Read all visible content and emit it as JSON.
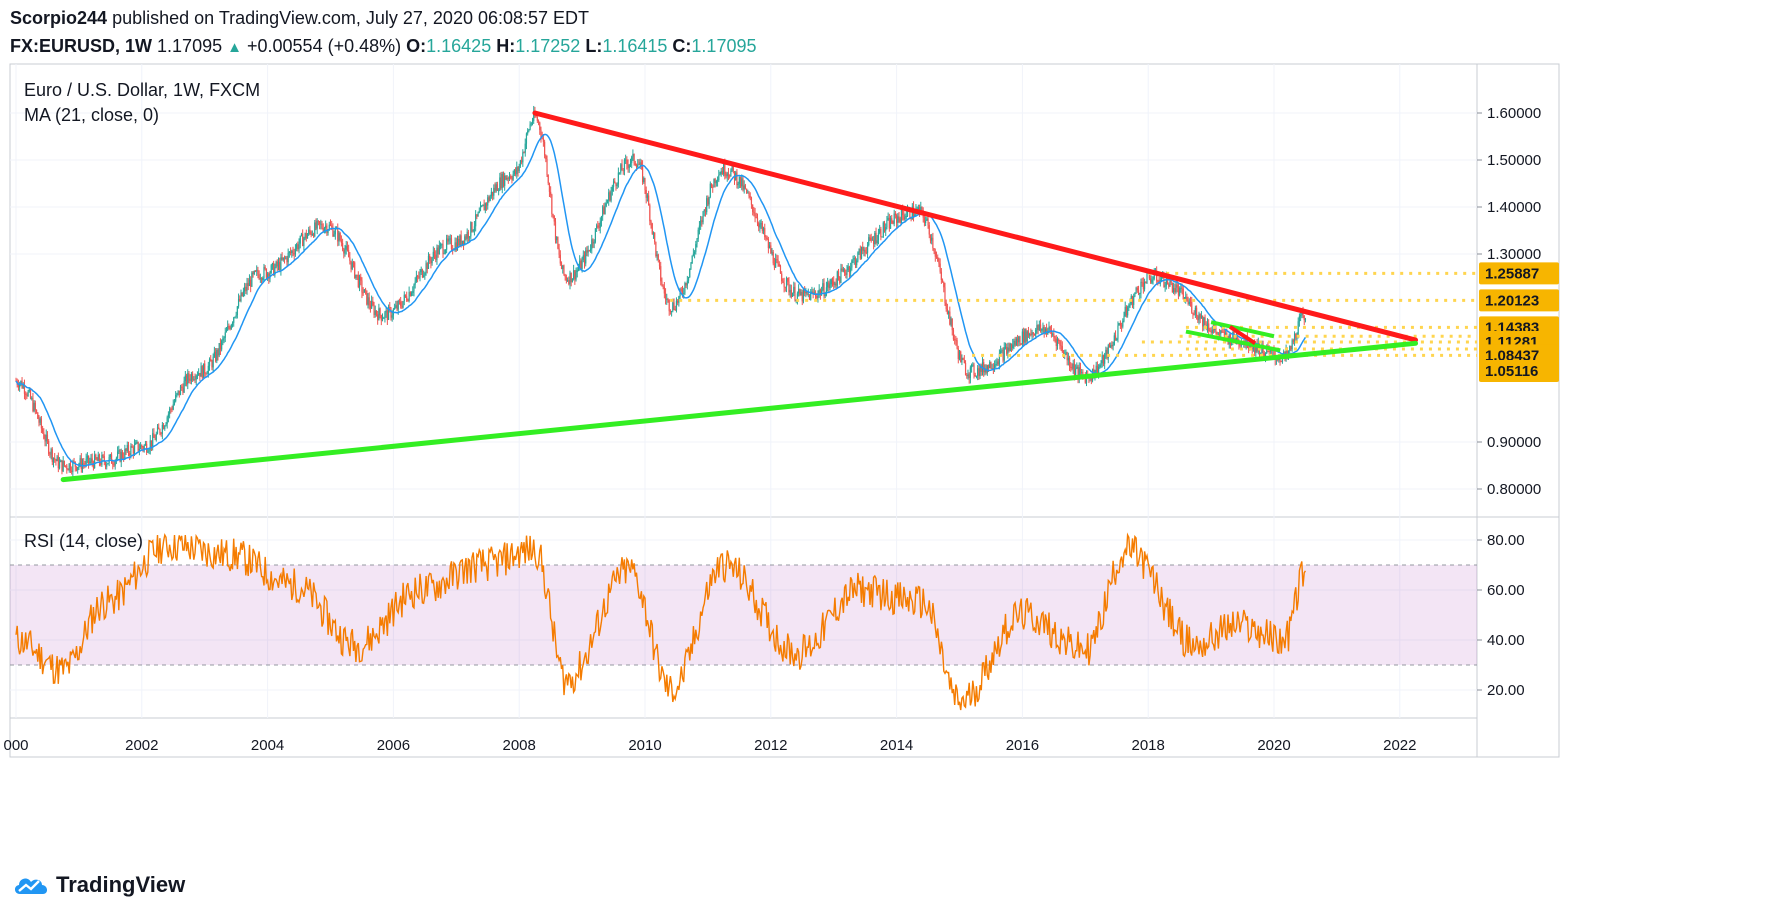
{
  "header": {
    "publisher": "Scorpio244",
    "published_text": "published on TradingView.com, July 27, 2020 06:08:57 EDT",
    "symbol": "FX:EURUSD, 1W",
    "last": "1.17095",
    "change": "+0.00554 (+0.48%)",
    "o_label": "O:",
    "o": "1.16425",
    "h_label": "H:",
    "h": "1.17252",
    "l_label": "L:",
    "l": "1.16415",
    "c_label": "C:",
    "c": "1.17095"
  },
  "brand": {
    "logo_text": "TradingView"
  },
  "colors": {
    "up": "#26a69a",
    "down": "#ef5350",
    "ma": "#2196f3",
    "rsi": "#f57c00",
    "resistance": "#ff1a1a",
    "support": "#33ee22",
    "levels": "#ffd54f",
    "highlight": "#f7b500"
  },
  "chart_data": [
    {
      "type": "candlestick",
      "title": "Euro / U.S. Dollar, 1W, FXCM",
      "indicator": "MA (21, close, 0)",
      "y_ticks": [
        "1.60000",
        "1.50000",
        "1.40000",
        "1.30000",
        "0.90000",
        "0.80000"
      ],
      "price_labels": [
        "1.25887",
        "1.20123",
        "1.14383",
        "1.11281",
        "1.08437",
        "1.05116"
      ],
      "x_ticks": [
        "000",
        "2002",
        "2004",
        "2006",
        "2008",
        "2010",
        "2012",
        "2014",
        "2016",
        "2018",
        "2020",
        "2022"
      ],
      "approx_close_path": [
        {
          "x": "2000-01",
          "y": 1.03
        },
        {
          "x": "2000-10",
          "y": 0.85
        },
        {
          "x": "2001-06",
          "y": 0.86
        },
        {
          "x": "2002-01",
          "y": 0.89
        },
        {
          "x": "2002-12",
          "y": 1.05
        },
        {
          "x": "2003-12",
          "y": 1.26
        },
        {
          "x": "2004-12",
          "y": 1.36
        },
        {
          "x": "2005-11",
          "y": 1.17
        },
        {
          "x": "2006-12",
          "y": 1.32
        },
        {
          "x": "2007-12",
          "y": 1.47
        },
        {
          "x": "2008-04",
          "y": 1.59
        },
        {
          "x": "2008-10",
          "y": 1.25
        },
        {
          "x": "2009-11",
          "y": 1.5
        },
        {
          "x": "2010-06",
          "y": 1.19
        },
        {
          "x": "2011-04",
          "y": 1.48
        },
        {
          "x": "2012-07",
          "y": 1.21
        },
        {
          "x": "2014-05",
          "y": 1.39
        },
        {
          "x": "2015-03",
          "y": 1.05
        },
        {
          "x": "2016-05",
          "y": 1.14
        },
        {
          "x": "2017-01",
          "y": 1.04
        },
        {
          "x": "2018-02",
          "y": 1.25
        },
        {
          "x": "2019-05",
          "y": 1.12
        },
        {
          "x": "2020-03",
          "y": 1.08
        },
        {
          "x": "2020-07",
          "y": 1.17
        }
      ],
      "trendlines": [
        {
          "name": "resistance",
          "from": {
            "x": "2008-04",
            "y": 1.6
          },
          "to": {
            "x": "2022-04",
            "y": 1.117
          }
        },
        {
          "name": "support",
          "from": {
            "x": "2000-10",
            "y": 0.82
          },
          "to": {
            "x": "2022-04",
            "y": 1.11
          }
        }
      ]
    },
    {
      "type": "line",
      "title": "RSI (14, close)",
      "y_ticks": [
        "80.00",
        "60.00",
        "40.00",
        "20.00"
      ],
      "band": [
        30,
        70
      ],
      "approx_path": [
        {
          "x": "2000-01",
          "y": 40
        },
        {
          "x": "2000-10",
          "y": 28
        },
        {
          "x": "2001-06",
          "y": 55
        },
        {
          "x": "2002-06",
          "y": 78
        },
        {
          "x": "2003-06",
          "y": 74
        },
        {
          "x": "2004-06",
          "y": 62
        },
        {
          "x": "2005-06",
          "y": 38
        },
        {
          "x": "2006-06",
          "y": 60
        },
        {
          "x": "2007-06",
          "y": 70
        },
        {
          "x": "2008-04",
          "y": 76
        },
        {
          "x": "2008-10",
          "y": 24
        },
        {
          "x": "2009-10",
          "y": 68
        },
        {
          "x": "2010-06",
          "y": 20
        },
        {
          "x": "2011-04",
          "y": 70
        },
        {
          "x": "2012-06",
          "y": 35
        },
        {
          "x": "2013-06",
          "y": 60
        },
        {
          "x": "2014-06",
          "y": 55
        },
        {
          "x": "2015-01",
          "y": 15
        },
        {
          "x": "2016-01",
          "y": 50
        },
        {
          "x": "2017-01",
          "y": 36
        },
        {
          "x": "2017-09",
          "y": 76
        },
        {
          "x": "2018-10",
          "y": 38
        },
        {
          "x": "2019-06",
          "y": 46
        },
        {
          "x": "2020-03",
          "y": 40
        },
        {
          "x": "2020-07",
          "y": 68
        }
      ]
    }
  ]
}
